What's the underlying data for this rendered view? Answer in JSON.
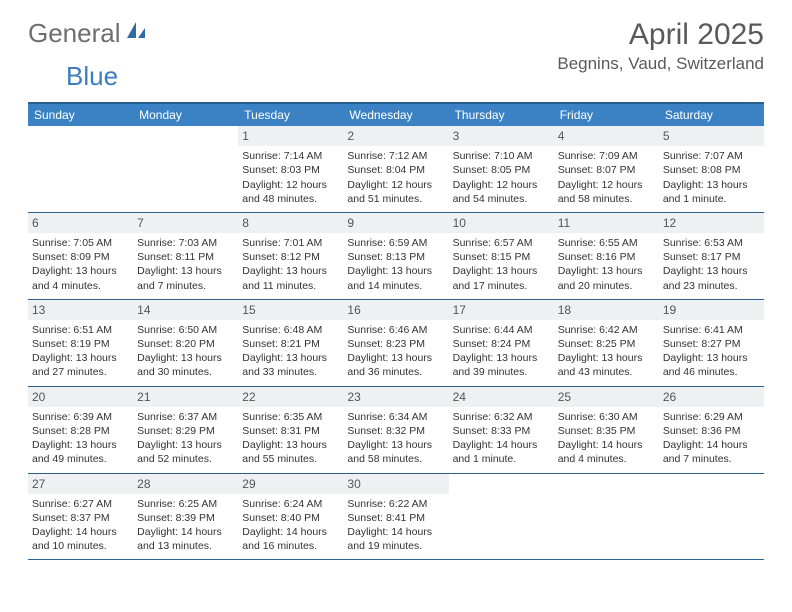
{
  "brand": {
    "text_general": "General",
    "text_blue": "Blue",
    "icon_color": "#2f6aa8"
  },
  "header": {
    "month_title": "April 2025",
    "location": "Begnins, Vaud, Switzerland"
  },
  "colors": {
    "header_bg": "#3b82c4",
    "header_text": "#ffffff",
    "row_border": "#2b5f8f",
    "daynum_bg": "#eef0f2",
    "text": "#333333"
  },
  "day_labels": [
    "Sunday",
    "Monday",
    "Tuesday",
    "Wednesday",
    "Thursday",
    "Friday",
    "Saturday"
  ],
  "weeks": [
    [
      {
        "empty": true
      },
      {
        "empty": true
      },
      {
        "num": "1",
        "sunrise": "Sunrise: 7:14 AM",
        "sunset": "Sunset: 8:03 PM",
        "daylight": "Daylight: 12 hours and 48 minutes."
      },
      {
        "num": "2",
        "sunrise": "Sunrise: 7:12 AM",
        "sunset": "Sunset: 8:04 PM",
        "daylight": "Daylight: 12 hours and 51 minutes."
      },
      {
        "num": "3",
        "sunrise": "Sunrise: 7:10 AM",
        "sunset": "Sunset: 8:05 PM",
        "daylight": "Daylight: 12 hours and 54 minutes."
      },
      {
        "num": "4",
        "sunrise": "Sunrise: 7:09 AM",
        "sunset": "Sunset: 8:07 PM",
        "daylight": "Daylight: 12 hours and 58 minutes."
      },
      {
        "num": "5",
        "sunrise": "Sunrise: 7:07 AM",
        "sunset": "Sunset: 8:08 PM",
        "daylight": "Daylight: 13 hours and 1 minute."
      }
    ],
    [
      {
        "num": "6",
        "sunrise": "Sunrise: 7:05 AM",
        "sunset": "Sunset: 8:09 PM",
        "daylight": "Daylight: 13 hours and 4 minutes."
      },
      {
        "num": "7",
        "sunrise": "Sunrise: 7:03 AM",
        "sunset": "Sunset: 8:11 PM",
        "daylight": "Daylight: 13 hours and 7 minutes."
      },
      {
        "num": "8",
        "sunrise": "Sunrise: 7:01 AM",
        "sunset": "Sunset: 8:12 PM",
        "daylight": "Daylight: 13 hours and 11 minutes."
      },
      {
        "num": "9",
        "sunrise": "Sunrise: 6:59 AM",
        "sunset": "Sunset: 8:13 PM",
        "daylight": "Daylight: 13 hours and 14 minutes."
      },
      {
        "num": "10",
        "sunrise": "Sunrise: 6:57 AM",
        "sunset": "Sunset: 8:15 PM",
        "daylight": "Daylight: 13 hours and 17 minutes."
      },
      {
        "num": "11",
        "sunrise": "Sunrise: 6:55 AM",
        "sunset": "Sunset: 8:16 PM",
        "daylight": "Daylight: 13 hours and 20 minutes."
      },
      {
        "num": "12",
        "sunrise": "Sunrise: 6:53 AM",
        "sunset": "Sunset: 8:17 PM",
        "daylight": "Daylight: 13 hours and 23 minutes."
      }
    ],
    [
      {
        "num": "13",
        "sunrise": "Sunrise: 6:51 AM",
        "sunset": "Sunset: 8:19 PM",
        "daylight": "Daylight: 13 hours and 27 minutes."
      },
      {
        "num": "14",
        "sunrise": "Sunrise: 6:50 AM",
        "sunset": "Sunset: 8:20 PM",
        "daylight": "Daylight: 13 hours and 30 minutes."
      },
      {
        "num": "15",
        "sunrise": "Sunrise: 6:48 AM",
        "sunset": "Sunset: 8:21 PM",
        "daylight": "Daylight: 13 hours and 33 minutes."
      },
      {
        "num": "16",
        "sunrise": "Sunrise: 6:46 AM",
        "sunset": "Sunset: 8:23 PM",
        "daylight": "Daylight: 13 hours and 36 minutes."
      },
      {
        "num": "17",
        "sunrise": "Sunrise: 6:44 AM",
        "sunset": "Sunset: 8:24 PM",
        "daylight": "Daylight: 13 hours and 39 minutes."
      },
      {
        "num": "18",
        "sunrise": "Sunrise: 6:42 AM",
        "sunset": "Sunset: 8:25 PM",
        "daylight": "Daylight: 13 hours and 43 minutes."
      },
      {
        "num": "19",
        "sunrise": "Sunrise: 6:41 AM",
        "sunset": "Sunset: 8:27 PM",
        "daylight": "Daylight: 13 hours and 46 minutes."
      }
    ],
    [
      {
        "num": "20",
        "sunrise": "Sunrise: 6:39 AM",
        "sunset": "Sunset: 8:28 PM",
        "daylight": "Daylight: 13 hours and 49 minutes."
      },
      {
        "num": "21",
        "sunrise": "Sunrise: 6:37 AM",
        "sunset": "Sunset: 8:29 PM",
        "daylight": "Daylight: 13 hours and 52 minutes."
      },
      {
        "num": "22",
        "sunrise": "Sunrise: 6:35 AM",
        "sunset": "Sunset: 8:31 PM",
        "daylight": "Daylight: 13 hours and 55 minutes."
      },
      {
        "num": "23",
        "sunrise": "Sunrise: 6:34 AM",
        "sunset": "Sunset: 8:32 PM",
        "daylight": "Daylight: 13 hours and 58 minutes."
      },
      {
        "num": "24",
        "sunrise": "Sunrise: 6:32 AM",
        "sunset": "Sunset: 8:33 PM",
        "daylight": "Daylight: 14 hours and 1 minute."
      },
      {
        "num": "25",
        "sunrise": "Sunrise: 6:30 AM",
        "sunset": "Sunset: 8:35 PM",
        "daylight": "Daylight: 14 hours and 4 minutes."
      },
      {
        "num": "26",
        "sunrise": "Sunrise: 6:29 AM",
        "sunset": "Sunset: 8:36 PM",
        "daylight": "Daylight: 14 hours and 7 minutes."
      }
    ],
    [
      {
        "num": "27",
        "sunrise": "Sunrise: 6:27 AM",
        "sunset": "Sunset: 8:37 PM",
        "daylight": "Daylight: 14 hours and 10 minutes."
      },
      {
        "num": "28",
        "sunrise": "Sunrise: 6:25 AM",
        "sunset": "Sunset: 8:39 PM",
        "daylight": "Daylight: 14 hours and 13 minutes."
      },
      {
        "num": "29",
        "sunrise": "Sunrise: 6:24 AM",
        "sunset": "Sunset: 8:40 PM",
        "daylight": "Daylight: 14 hours and 16 minutes."
      },
      {
        "num": "30",
        "sunrise": "Sunrise: 6:22 AM",
        "sunset": "Sunset: 8:41 PM",
        "daylight": "Daylight: 14 hours and 19 minutes."
      },
      {
        "empty": true
      },
      {
        "empty": true
      },
      {
        "empty": true
      }
    ]
  ]
}
